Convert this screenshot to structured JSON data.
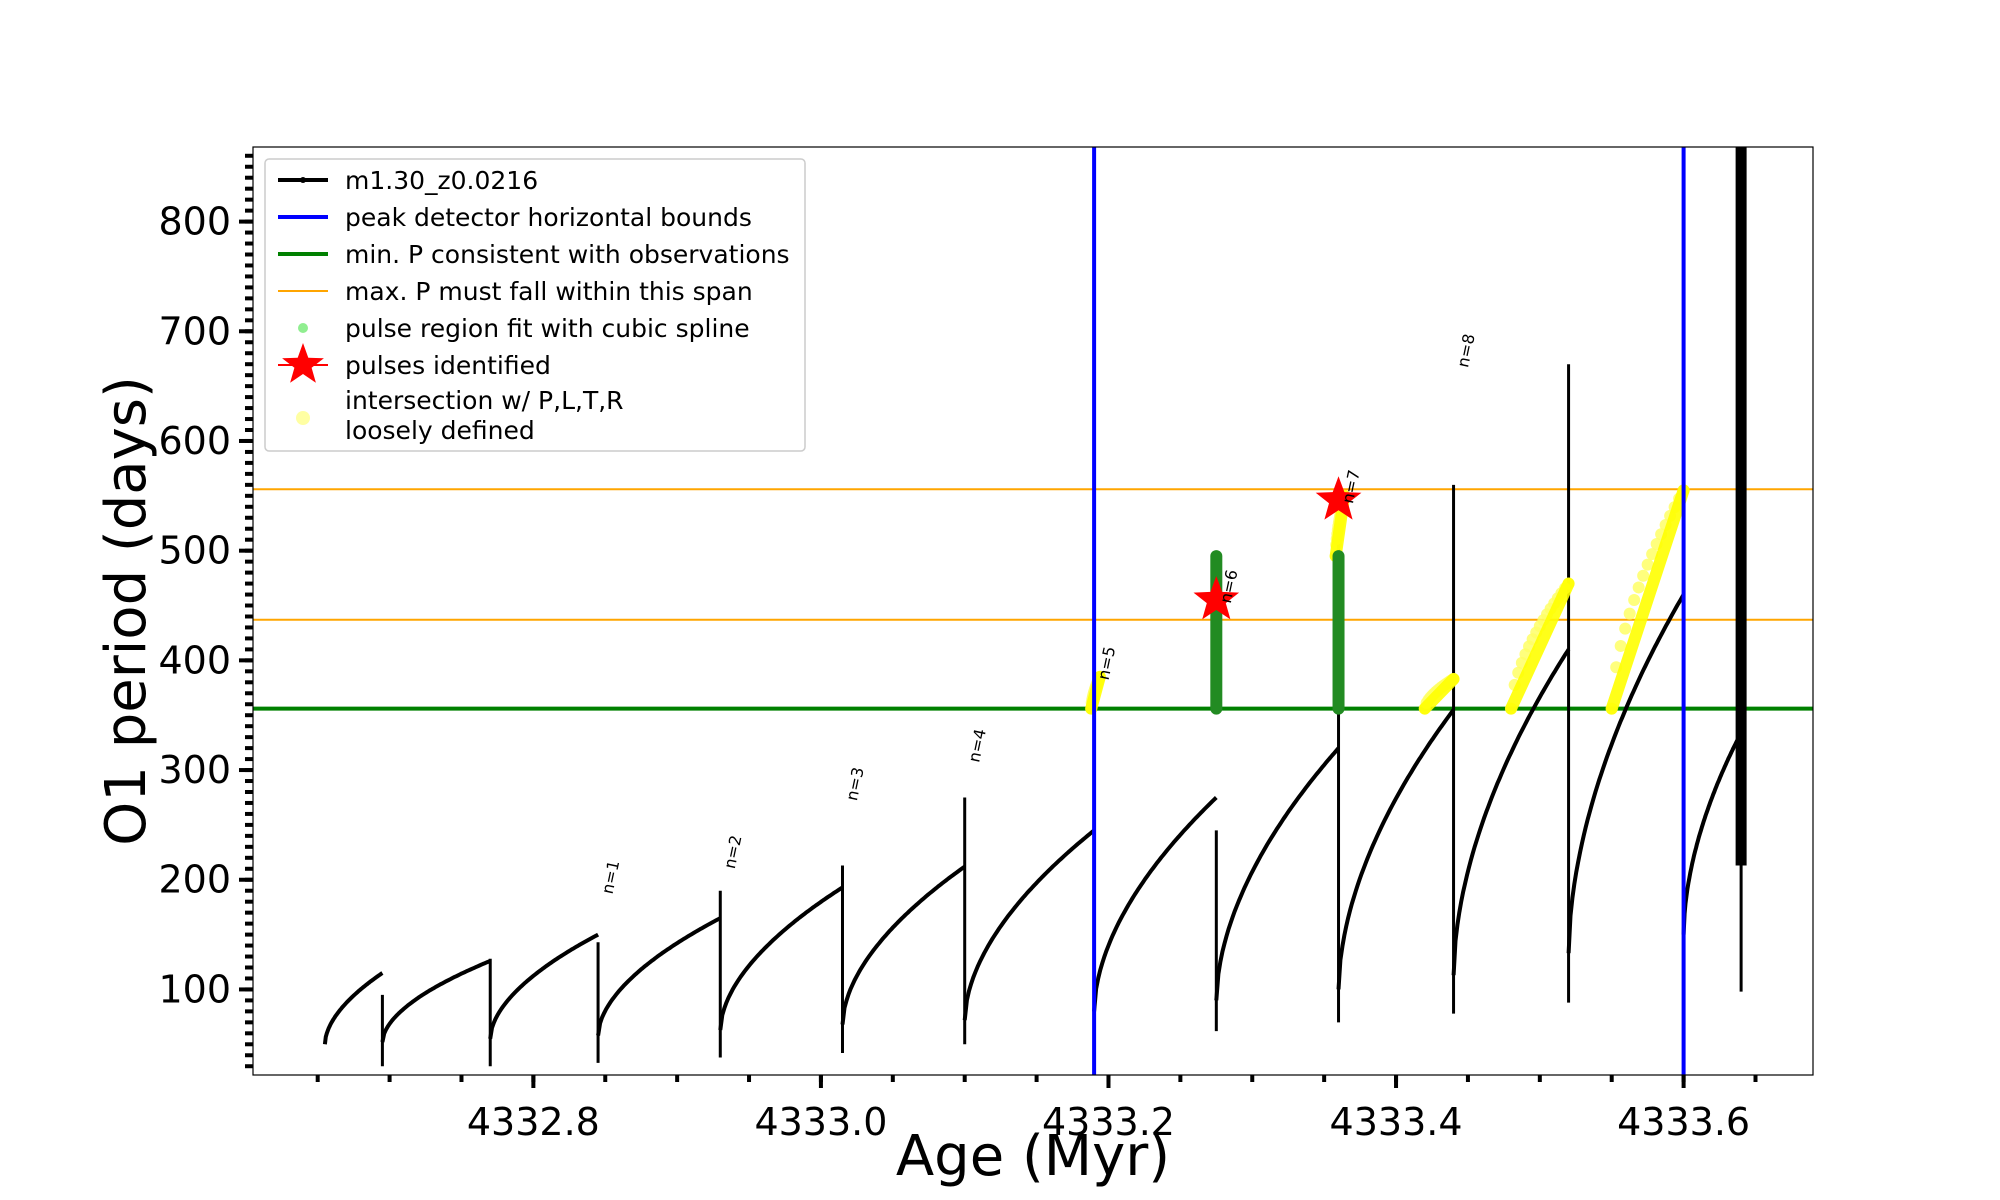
{
  "chart_data": {
    "type": "line",
    "xlabel": "Age (Myr)",
    "ylabel": "O1 period (days)",
    "xlim": [
      4332.605,
      4333.69
    ],
    "ylim": [
      22,
      868
    ],
    "xticks_major": [
      4332.8,
      4333.0,
      4333.2,
      4333.4,
      4333.6
    ],
    "xtick_labels": [
      "4332.8",
      "4333.0",
      "4333.2",
      "4333.4",
      "4333.6"
    ],
    "xticks_minor_step": 0.05,
    "yticks_major": [
      100,
      200,
      300,
      400,
      500,
      600,
      700,
      800
    ],
    "ytick_labels": [
      "100",
      "200",
      "300",
      "400",
      "500",
      "600",
      "700",
      "800"
    ],
    "yticks_minor_step": 10,
    "grid": false,
    "legend_position": "top-left",
    "legend": [
      {
        "label": "m1.30_z0.0216",
        "marker": "line-dot",
        "color": "#000000"
      },
      {
        "label": "peak detector horizontal bounds",
        "marker": "line",
        "color": "#0000ff"
      },
      {
        "label": "min. P consistent with observations",
        "marker": "line",
        "color": "#008000"
      },
      {
        "label": "max. P must fall within this span",
        "marker": "line",
        "color": "#ffa500"
      },
      {
        "label": "pulse region fit with cubic spline",
        "marker": "dot",
        "color": "#90ee90"
      },
      {
        "label": "pulses identified",
        "marker": "star",
        "color": "#ff0000"
      },
      {
        "label": "intersection w/ P,L,T,R\nloosely defined",
        "marker": "circle",
        "color": "#ffff99"
      }
    ],
    "series": [
      {
        "name": "m1.30_z0.0216",
        "color": "#000000",
        "cycles": [
          {
            "start": 4332.655,
            "end": 4332.695,
            "p0": 50,
            "peak": 115,
            "dip_to": 30,
            "spike_to": 95
          },
          {
            "start": 4332.695,
            "end": 4332.77,
            "p0": 52,
            "peak": 126,
            "dip_to": 30,
            "spike_to": 128
          },
          {
            "start": 4332.77,
            "end": 4332.845,
            "p0": 55,
            "peak": 150,
            "dip_to": 33,
            "spike_to": 143
          },
          {
            "start": 4332.845,
            "end": 4332.93,
            "p0": 58,
            "peak": 165,
            "dip_to": 38,
            "spike_to": 190
          },
          {
            "start": 4332.93,
            "end": 4333.015,
            "p0": 63,
            "peak": 193,
            "dip_to": 42,
            "spike_to": 213
          },
          {
            "start": 4333.015,
            "end": 4333.1,
            "p0": 68,
            "peak": 212,
            "dip_to": 50,
            "spike_to": 275
          },
          {
            "start": 4333.1,
            "end": 4333.19,
            "p0": 72,
            "peak": 245,
            "dip_to": 55,
            "spike_to": 310
          },
          {
            "start": 4333.19,
            "end": 4333.275,
            "p0": 80,
            "peak": 275,
            "dip_to": 62,
            "spike_to": 245
          },
          {
            "start": 4333.275,
            "end": 4333.36,
            "p0": 90,
            "peak": 320,
            "dip_to": 70,
            "spike_to": 525
          },
          {
            "start": 4333.36,
            "end": 4333.44,
            "p0": 100,
            "peak": 355,
            "dip_to": 78,
            "spike_to": 560
          },
          {
            "start": 4333.44,
            "end": 4333.52,
            "p0": 113,
            "peak": 410,
            "dip_to": 88,
            "spike_to": 670
          },
          {
            "start": 4333.52,
            "end": 4333.6,
            "p0": 133,
            "peak": 460,
            "dip_to": 98,
            "spike_to": 815
          },
          {
            "start": 4333.6,
            "end": 4333.64,
            "p0": 150,
            "peak": 334,
            "dip_to": 98,
            "spike_to": 683
          }
        ],
        "tail": {
          "x": 4333.64,
          "y_from": 213,
          "y_to": 868,
          "end_y": 213
        }
      }
    ],
    "vlines": [
      {
        "name": "peak detector horizontal bounds",
        "x": 4333.19,
        "color": "#0000ff"
      },
      {
        "name": "peak detector horizontal bounds",
        "x": 4333.6,
        "color": "#0000ff"
      }
    ],
    "hlines": [
      {
        "name": "min. P consistent with observations",
        "y": 356,
        "color": "#008000"
      },
      {
        "name": "max. P must fall within this span",
        "y": 437,
        "color": "#ffa500"
      },
      {
        "name": "max. P must fall within this span",
        "y": 556,
        "color": "#ffa500"
      }
    ],
    "green_fits": [
      {
        "x": 4333.275,
        "y_from": 356,
        "y_to": 495
      },
      {
        "x": 4333.36,
        "y_from": 356,
        "y_to": 495
      }
    ],
    "yellow_regions": [
      {
        "x_from": 4333.188,
        "x_to": 4333.194,
        "y_from": 356,
        "y_to": 385
      },
      {
        "x_from": 4333.358,
        "x_to": 4333.364,
        "y_from": 495,
        "y_to": 550
      },
      {
        "x_from": 4333.42,
        "x_to": 4333.44,
        "y_from": 356,
        "y_to": 383
      },
      {
        "x_from": 4333.48,
        "x_to": 4333.52,
        "y_from": 356,
        "y_to": 470
      },
      {
        "x_from": 4333.55,
        "x_to": 4333.6,
        "y_from": 356,
        "y_to": 555
      }
    ],
    "pulses_identified": [
      {
        "x": 4333.275,
        "y": 455
      },
      {
        "x": 4333.36,
        "y": 546
      }
    ],
    "annotations": [
      {
        "text": "n=1",
        "x": 4332.848,
        "y": 190
      },
      {
        "text": "n=2",
        "x": 4332.933,
        "y": 213
      },
      {
        "text": "n=3",
        "x": 4333.018,
        "y": 275
      },
      {
        "text": "n=4",
        "x": 4333.103,
        "y": 310
      },
      {
        "text": "n=5",
        "x": 4333.193,
        "y": 385
      },
      {
        "text": "n=6",
        "x": 4333.278,
        "y": 455
      },
      {
        "text": "n=7",
        "x": 4333.363,
        "y": 546
      },
      {
        "text": "n=8",
        "x": 4333.443,
        "y": 670
      }
    ]
  }
}
